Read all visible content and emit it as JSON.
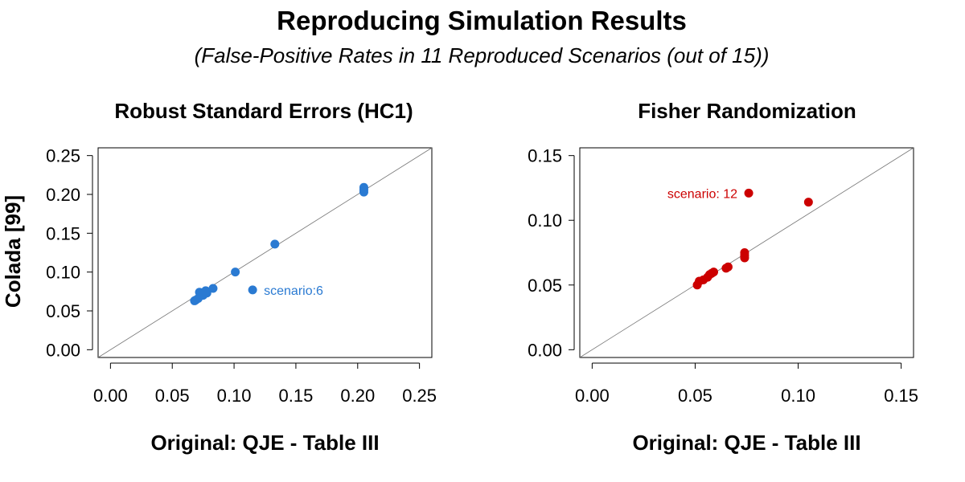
{
  "title": "Reproducing Simulation Results",
  "subtitle": "(False-Positive Rates in 11 Reproduced Scenarios (out of 15))",
  "ylabel": "Colada [99]",
  "chart_data": [
    {
      "type": "scatter",
      "title": "Robust Standard Errors (HC1)",
      "xlabel": "Original: QJE - Table III",
      "ylabel": "Colada [99]",
      "xlim": [
        0,
        0.25
      ],
      "ylim": [
        0,
        0.25
      ],
      "xticks": [
        "0.00",
        "0.05",
        "0.10",
        "0.15",
        "0.20",
        "0.25"
      ],
      "yticks": [
        "0.00",
        "0.05",
        "0.10",
        "0.15",
        "0.20",
        "0.25"
      ],
      "color": "#2a7ad2",
      "reference_line": "y = x",
      "points": [
        {
          "x": 0.068,
          "y": 0.063
        },
        {
          "x": 0.069,
          "y": 0.064
        },
        {
          "x": 0.071,
          "y": 0.066
        },
        {
          "x": 0.072,
          "y": 0.074
        },
        {
          "x": 0.075,
          "y": 0.07
        },
        {
          "x": 0.077,
          "y": 0.076
        },
        {
          "x": 0.078,
          "y": 0.073
        },
        {
          "x": 0.083,
          "y": 0.079
        },
        {
          "x": 0.101,
          "y": 0.1
        },
        {
          "x": 0.133,
          "y": 0.136
        },
        {
          "x": 0.115,
          "y": 0.077
        },
        {
          "x": 0.205,
          "y": 0.203
        },
        {
          "x": 0.205,
          "y": 0.206
        },
        {
          "x": 0.205,
          "y": 0.209
        }
      ],
      "annotation": {
        "text": "scenario:6",
        "x": 0.115,
        "y": 0.077
      }
    },
    {
      "type": "scatter",
      "title": "Fisher Randomization",
      "xlabel": "Original: QJE - Table III",
      "ylabel": "",
      "xlim": [
        0,
        0.15
      ],
      "ylim": [
        0,
        0.15
      ],
      "xticks": [
        "0.00",
        "0.05",
        "0.10",
        "0.15"
      ],
      "yticks": [
        "0.00",
        "0.05",
        "0.10",
        "0.15"
      ],
      "color": "#cc0000",
      "reference_line": "y = x",
      "points": [
        {
          "x": 0.051,
          "y": 0.05
        },
        {
          "x": 0.052,
          "y": 0.053
        },
        {
          "x": 0.054,
          "y": 0.054
        },
        {
          "x": 0.056,
          "y": 0.056
        },
        {
          "x": 0.057,
          "y": 0.058
        },
        {
          "x": 0.058,
          "y": 0.059
        },
        {
          "x": 0.059,
          "y": 0.06
        },
        {
          "x": 0.065,
          "y": 0.063
        },
        {
          "x": 0.066,
          "y": 0.064
        },
        {
          "x": 0.074,
          "y": 0.071
        },
        {
          "x": 0.074,
          "y": 0.073
        },
        {
          "x": 0.074,
          "y": 0.075
        },
        {
          "x": 0.076,
          "y": 0.121
        },
        {
          "x": 0.105,
          "y": 0.114
        }
      ],
      "annotation": {
        "text": "scenario: 12",
        "x": 0.076,
        "y": 0.121
      }
    }
  ]
}
